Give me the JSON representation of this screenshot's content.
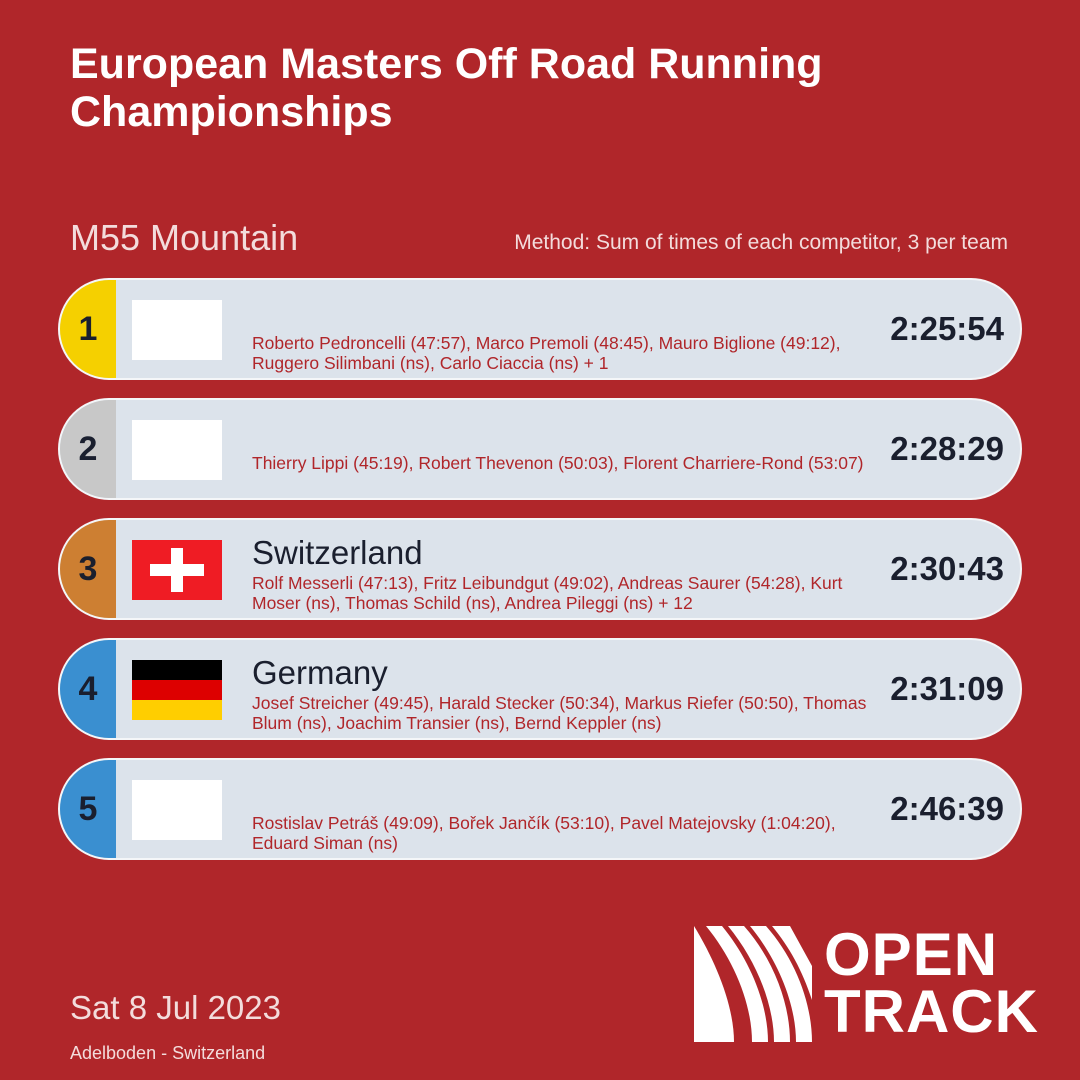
{
  "header": {
    "title": "European Masters Off Road Running Championships",
    "event": "M55 Mountain",
    "method": "Method: Sum of times of each competitor, 3 per team"
  },
  "colors": {
    "background": "#b0262a",
    "gold": "#f5d000",
    "silver": "#c8c8c8",
    "bronze": "#cd7f32",
    "other": "#3a8fd0"
  },
  "results": [
    {
      "rank": "1",
      "country": "",
      "flag": "blank",
      "medal": "gold",
      "members": "Roberto Pedroncelli (47:57), Marco Premoli (48:45), Mauro Biglione (49:12), Ruggero Silimbani (ns), Carlo Ciaccia (ns) + 1",
      "time": "2:25:54"
    },
    {
      "rank": "2",
      "country": "",
      "flag": "blank",
      "medal": "silver",
      "members": "Thierry Lippi (45:19), Robert Thevenon (50:03), Florent Charriere-Rond (53:07)",
      "time": "2:28:29"
    },
    {
      "rank": "3",
      "country": "Switzerland",
      "flag": "switzerland",
      "medal": "bronze",
      "members": "Rolf Messerli (47:13), Fritz Leibundgut (49:02), Andreas Saurer (54:28), Kurt Moser (ns), Thomas Schild (ns), Andrea Pileggi (ns) + 12",
      "time": "2:30:43"
    },
    {
      "rank": "4",
      "country": "Germany",
      "flag": "germany",
      "medal": "other",
      "members": "Josef Streicher (49:45), Harald Stecker (50:34), Markus Riefer (50:50), Thomas Blum (ns), Joachim Transier (ns), Bernd Keppler (ns)",
      "time": "2:31:09"
    },
    {
      "rank": "5",
      "country": "",
      "flag": "blank",
      "medal": "other",
      "members": "Rostislav Petráš (49:09), Bořek Jančík (53:10), Pavel Matejovsky (1:04:20), Eduard Siman (ns)",
      "time": "2:46:39"
    }
  ],
  "footer": {
    "date": "Sat 8 Jul 2023",
    "location": "Adelboden - Switzerland"
  },
  "logo": {
    "line1": "OPEN",
    "line2": "TRACK"
  }
}
